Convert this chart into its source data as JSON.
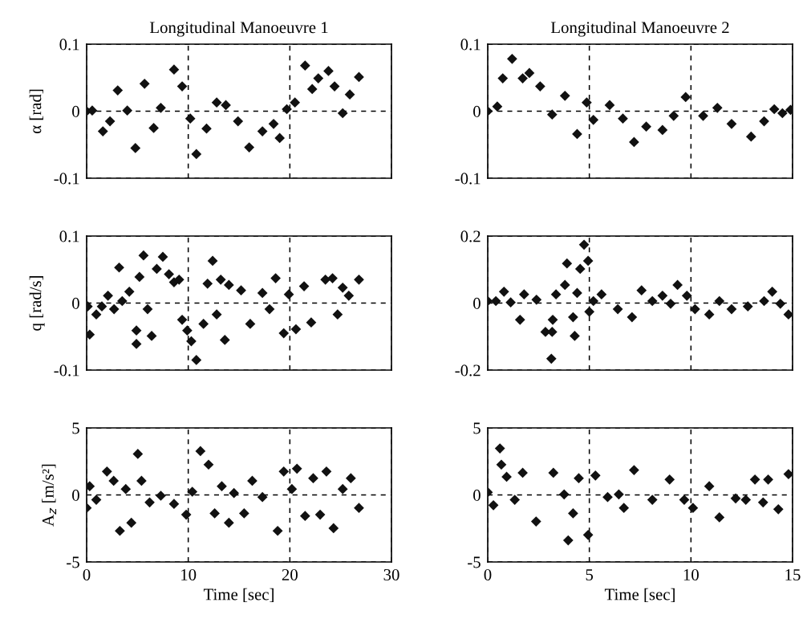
{
  "chart_data": [
    {
      "type": "scatter",
      "title": "Longitudinal Manoeuvre 1",
      "ylabel": "α [rad]",
      "color": "#111111",
      "marker": "diamond",
      "grid": true,
      "tick_labels": "y",
      "xlim": [
        0,
        30
      ],
      "xticks": [
        0,
        10,
        20,
        30
      ],
      "ylim": [
        -0.1,
        0.1
      ],
      "yticks": [
        -0.1,
        0,
        0.1
      ],
      "x": [
        0,
        0.55,
        1.6,
        2.3,
        3.06,
        4.0,
        4.8,
        5.7,
        6.6,
        7.3,
        8.6,
        9.4,
        10.2,
        10.8,
        11.8,
        12.8,
        13.7,
        14.9,
        16.0,
        17.3,
        18.4,
        19.0,
        19.7,
        20.5,
        21.5,
        22.2,
        22.8,
        23.8,
        24.4,
        25.2,
        25.9,
        26.8
      ],
      "values": [
        0,
        0.001,
        -0.03,
        -0.015,
        0.031,
        0.001,
        -0.055,
        0.041,
        -0.025,
        0.005,
        0.062,
        0.037,
        -0.011,
        -0.064,
        -0.026,
        0.013,
        0.009,
        -0.015,
        -0.054,
        -0.03,
        -0.019,
        -0.04,
        0.003,
        0.013,
        0.068,
        0.033,
        0.049,
        0.06,
        0.037,
        -0.003,
        0.025,
        0.051
      ]
    },
    {
      "type": "scatter",
      "title": "Longitudinal Manoeuvre 2",
      "color": "#111111",
      "marker": "diamond",
      "grid": true,
      "tick_labels": "y",
      "xlim": [
        0,
        15
      ],
      "xticks": [
        0,
        5,
        10,
        15
      ],
      "ylim": [
        -0.1,
        0.1
      ],
      "yticks": [
        -0.1,
        0,
        0.1
      ],
      "x": [
        0,
        0.47,
        0.74,
        1.2,
        1.72,
        2.05,
        2.58,
        3.17,
        3.8,
        4.4,
        4.87,
        5.2,
        6.0,
        6.65,
        7.2,
        7.8,
        8.6,
        9.15,
        9.74,
        10.6,
        11.3,
        12.0,
        12.96,
        13.6,
        14.1,
        14.5,
        14.9
      ],
      "values": [
        0,
        0.007,
        0.049,
        0.078,
        0.049,
        0.057,
        0.037,
        -0.005,
        0.023,
        -0.034,
        0.013,
        -0.013,
        0.009,
        -0.011,
        -0.046,
        -0.023,
        -0.028,
        -0.007,
        0.021,
        -0.007,
        0.005,
        -0.019,
        -0.038,
        -0.015,
        0.003,
        -0.003,
        0.002
      ]
    },
    {
      "type": "scatter",
      "ylabel": "q [rad/s]",
      "color": "#111111",
      "marker": "diamond",
      "grid": true,
      "tick_labels": "y",
      "xlim": [
        0,
        30
      ],
      "xticks": [
        0,
        10,
        20,
        30
      ],
      "ylim": [
        -0.1,
        0.1
      ],
      "yticks": [
        -0.1,
        0,
        0.1
      ],
      "x": [
        0.1,
        0.3,
        0.95,
        1.5,
        2.1,
        2.7,
        3.2,
        3.5,
        4.2,
        4.9,
        4.9,
        5.2,
        5.6,
        6.0,
        6.4,
        6.9,
        7.5,
        8.1,
        8.6,
        9.1,
        9.4,
        9.9,
        10.3,
        10.8,
        11.5,
        11.9,
        12.4,
        12.8,
        13.2,
        13.6,
        14.0,
        15.2,
        16.1,
        17.3,
        18.0,
        18.6,
        19.4,
        19.9,
        20.6,
        21.4,
        22.1,
        23.5,
        24.2,
        24.7,
        25.2,
        25.8,
        26.8
      ],
      "values": [
        -0.005,
        -0.047,
        -0.017,
        -0.005,
        0.011,
        -0.009,
        0.053,
        0.003,
        0.017,
        -0.061,
        -0.041,
        0.039,
        0.071,
        -0.009,
        -0.049,
        0.051,
        0.069,
        0.043,
        0.031,
        0.035,
        -0.025,
        -0.041,
        -0.057,
        -0.085,
        -0.031,
        0.029,
        0.063,
        -0.017,
        0.035,
        -0.055,
        0.027,
        0.019,
        -0.031,
        0.015,
        -0.009,
        0.037,
        -0.045,
        0.013,
        -0.039,
        0.025,
        -0.029,
        0.035,
        0.037,
        -0.017,
        0.023,
        0.011,
        0.035
      ]
    },
    {
      "type": "scatter",
      "color": "#111111",
      "marker": "diamond",
      "grid": true,
      "tick_labels": "y",
      "xlim": [
        0,
        15
      ],
      "xticks": [
        0,
        5,
        10,
        15
      ],
      "ylim": [
        -0.2,
        0.2
      ],
      "yticks": [
        -0.2,
        0,
        0.2
      ],
      "x": [
        0,
        0.4,
        0.8,
        1.13,
        1.59,
        1.79,
        2.4,
        2.84,
        3.13,
        3.17,
        3.2,
        3.36,
        3.8,
        3.9,
        4.2,
        4.28,
        4.4,
        4.55,
        4.74,
        4.94,
        5.0,
        5.2,
        5.6,
        6.4,
        7.1,
        7.57,
        8.1,
        8.6,
        9.0,
        9.34,
        9.8,
        10.2,
        10.9,
        11.4,
        12.0,
        12.8,
        13.6,
        14.0,
        14.4,
        14.8
      ],
      "values": [
        0.006,
        0.006,
        0.034,
        0.002,
        -0.05,
        0.026,
        0.01,
        -0.086,
        -0.166,
        -0.086,
        -0.05,
        0.026,
        0.054,
        0.118,
        -0.042,
        -0.098,
        0.03,
        0.102,
        0.174,
        0.126,
        -0.026,
        0.006,
        0.026,
        -0.018,
        -0.042,
        0.038,
        0.006,
        0.022,
        -0.002,
        0.054,
        0.022,
        -0.018,
        -0.034,
        0.006,
        -0.018,
        -0.01,
        0.006,
        0.034,
        -0.002,
        -0.034
      ]
    },
    {
      "type": "scatter",
      "ylabel": "A$_{z}$ [m/s²]",
      "xlabel": "Time [sec]",
      "color": "#111111",
      "marker": "diamond",
      "grid": true,
      "xlim": [
        0,
        30
      ],
      "xticks": [
        0,
        10,
        20,
        30
      ],
      "ylim": [
        -5,
        5
      ],
      "yticks": [
        -5,
        0,
        5
      ],
      "x": [
        0,
        0.3,
        0.95,
        2.0,
        2.66,
        3.27,
        3.85,
        4.4,
        5.04,
        5.4,
        6.2,
        7.3,
        8.6,
        9.8,
        10.4,
        11.2,
        12.0,
        12.6,
        13.3,
        14.0,
        14.5,
        15.5,
        16.3,
        17.3,
        18.8,
        19.4,
        20.2,
        20.7,
        21.5,
        22.3,
        22.98,
        23.6,
        24.3,
        25.2,
        26.0,
        26.8
      ],
      "values": [
        -0.97,
        0.65,
        -0.36,
        1.75,
        1.05,
        -2.68,
        0.44,
        -2.08,
        3.06,
        1.05,
        -0.56,
        -0.06,
        -0.67,
        -1.47,
        0.24,
        3.27,
        2.26,
        -1.37,
        0.65,
        -2.08,
        0.14,
        -1.37,
        1.05,
        -0.16,
        -2.68,
        1.75,
        0.44,
        1.96,
        -1.57,
        1.25,
        -1.47,
        1.75,
        -2.48,
        0.44,
        1.25,
        -0.97
      ]
    },
    {
      "type": "scatter",
      "xlabel": "Time [sec]",
      "color": "#111111",
      "marker": "diamond",
      "grid": true,
      "xlim": [
        0,
        15
      ],
      "xticks": [
        0,
        5,
        10,
        15
      ],
      "ylim": [
        -5,
        5
      ],
      "yticks": [
        -5,
        0,
        5
      ],
      "x": [
        0,
        0.28,
        0.6,
        0.67,
        0.93,
        1.33,
        1.72,
        2.38,
        3.23,
        3.76,
        3.96,
        4.2,
        4.48,
        4.94,
        5.3,
        5.9,
        6.45,
        6.7,
        7.2,
        8.1,
        8.95,
        9.67,
        10.1,
        10.9,
        11.4,
        12.2,
        12.7,
        13.15,
        13.55,
        13.8,
        14.3,
        14.8
      ],
      "values": [
        0.2,
        -0.77,
        3.47,
        2.26,
        1.35,
        -0.36,
        1.65,
        -1.98,
        1.65,
        0.04,
        -3.39,
        -1.37,
        1.25,
        -2.98,
        1.45,
        -0.16,
        0.04,
        -0.97,
        1.85,
        -0.36,
        1.15,
        -0.36,
        -0.97,
        0.65,
        -1.67,
        -0.26,
        -0.36,
        1.15,
        -0.56,
        1.15,
        -1.07,
        1.55
      ]
    }
  ]
}
